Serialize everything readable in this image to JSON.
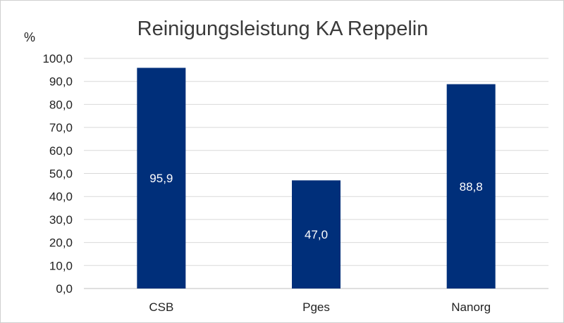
{
  "chart_data": {
    "type": "bar",
    "title": "Reinigungsleistung KA Reppelin",
    "ylabel": "%",
    "xlabel": "",
    "categories": [
      "CSB",
      "Pges",
      "Nanorg"
    ],
    "values": [
      95.9,
      47.0,
      88.8
    ],
    "data_labels": [
      "95,9",
      "47,0",
      "88,8"
    ],
    "ylim": [
      0,
      100
    ],
    "ytick_step": 10,
    "ytick_labels": [
      "0,0",
      "10,0",
      "20,0",
      "30,0",
      "40,0",
      "50,0",
      "60,0",
      "70,0",
      "80,0",
      "90,0",
      "100,0"
    ],
    "grid": true,
    "legend": "none",
    "colors": {
      "bar": "#002F7A",
      "grid": "#d9d9d9",
      "axis": "#bfbfbf"
    }
  }
}
